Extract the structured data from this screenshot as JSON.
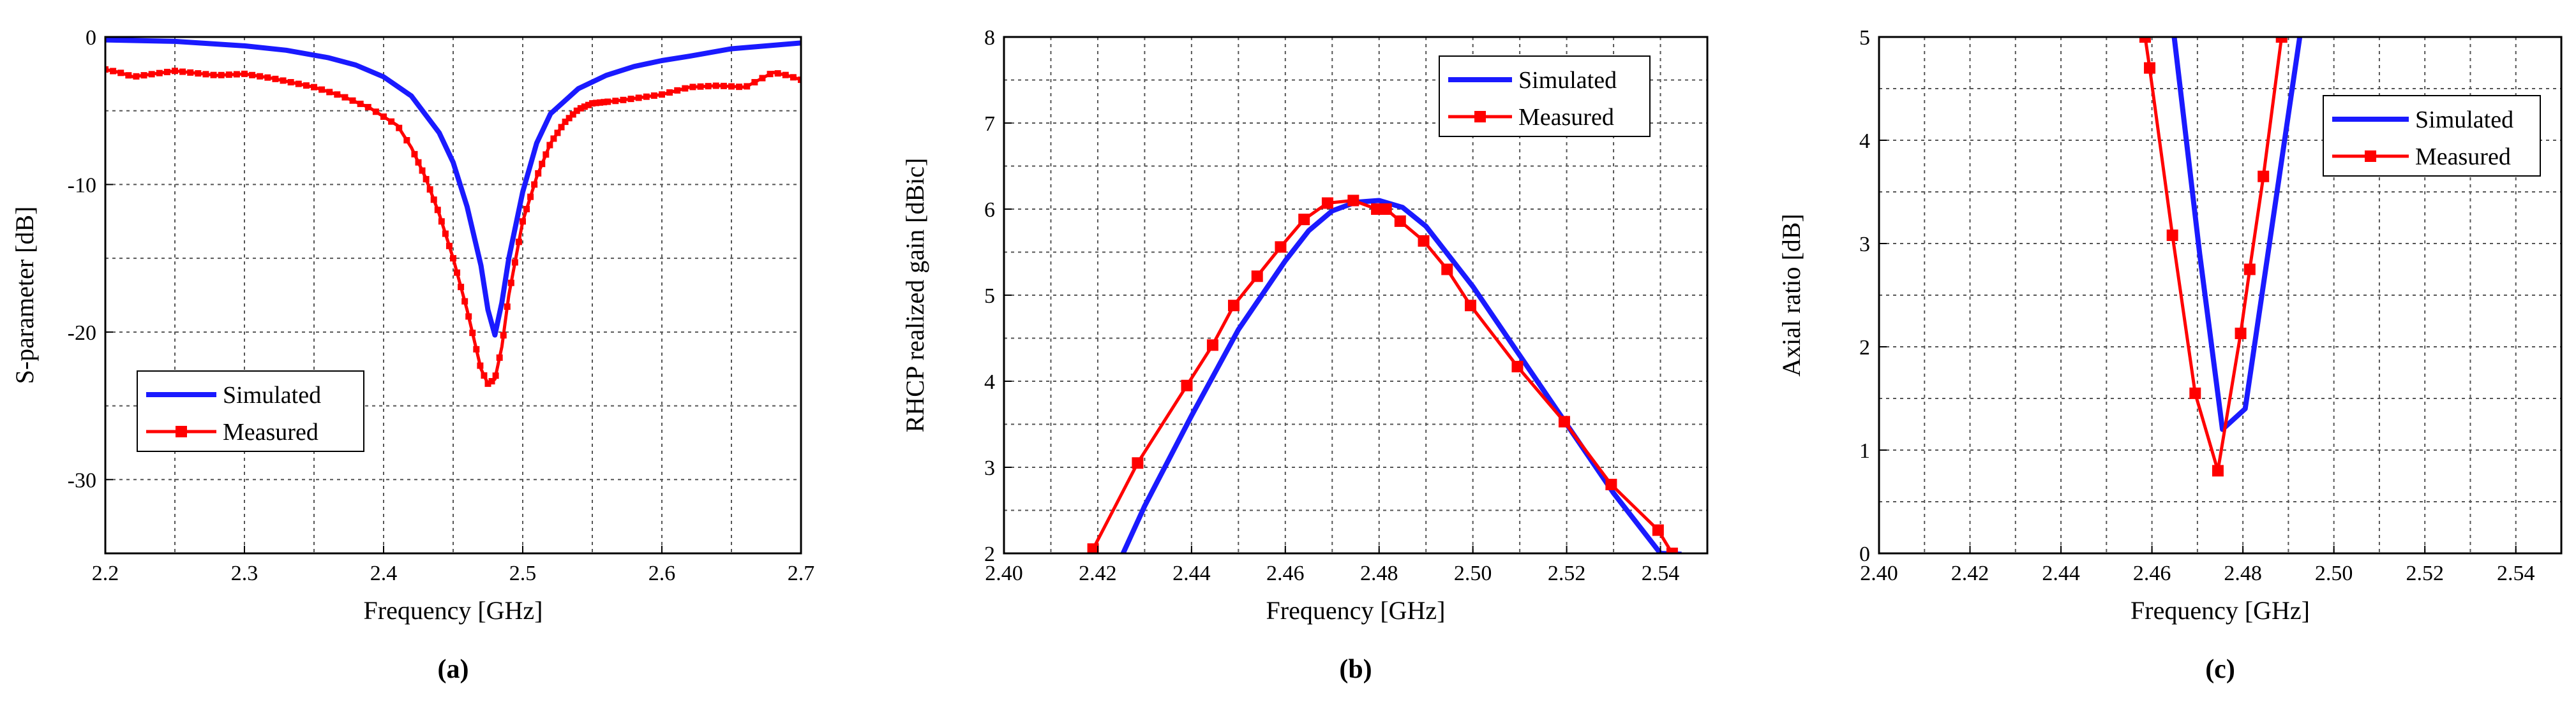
{
  "colors": {
    "simulated": "#1a1aff",
    "measured": "#ff0000",
    "grid": "#555555",
    "axis": "#000000"
  },
  "chart_data": [
    {
      "type": "line",
      "panel_label": "(a)",
      "xlabel": "Frequency [GHz]",
      "ylabel": "S-parameter [dB]",
      "xlim": [
        2.2,
        2.7
      ],
      "ylim": [
        -35,
        0
      ],
      "xticks": [
        2.2,
        2.3,
        2.4,
        2.5,
        2.6,
        2.7
      ],
      "xtick_labels": [
        "2.2",
        "2.3",
        "2.4",
        "2.5",
        "2.6",
        "2.7"
      ],
      "xgrid": [
        2.25,
        2.35,
        2.45,
        2.55,
        2.65
      ],
      "yticks": [
        0,
        -10,
        -20,
        -30
      ],
      "ytick_labels": [
        "0",
        "-10",
        "-20",
        "-30"
      ],
      "ygrid": [
        -5,
        -15,
        -25
      ],
      "legend_position": "lower-left",
      "series": [
        {
          "name": "Simulated",
          "color_key": "simulated",
          "marker": "none",
          "x": [
            2.2,
            2.25,
            2.3,
            2.33,
            2.36,
            2.38,
            2.4,
            2.42,
            2.44,
            2.45,
            2.46,
            2.47,
            2.475,
            2.48,
            2.485,
            2.49,
            2.5,
            2.51,
            2.52,
            2.54,
            2.56,
            2.58,
            2.6,
            2.62,
            2.65,
            2.7
          ],
          "y": [
            -0.2,
            -0.3,
            -0.6,
            -0.9,
            -1.4,
            -1.9,
            -2.7,
            -4.0,
            -6.5,
            -8.5,
            -11.5,
            -15.5,
            -18.5,
            -20.2,
            -18.0,
            -15.0,
            -10.5,
            -7.2,
            -5.2,
            -3.5,
            -2.6,
            -2.0,
            -1.6,
            -1.3,
            -0.8,
            -0.4
          ]
        },
        {
          "name": "Measured",
          "color_key": "measured",
          "marker": "square-dense",
          "x": [
            2.2,
            2.21,
            2.22,
            2.25,
            2.28,
            2.3,
            2.32,
            2.35,
            2.37,
            2.39,
            2.41,
            2.42,
            2.43,
            2.44,
            2.45,
            2.46,
            2.465,
            2.47,
            2.475,
            2.48,
            2.485,
            2.49,
            2.5,
            2.51,
            2.52,
            2.53,
            2.54,
            2.55,
            2.57,
            2.6,
            2.62,
            2.64,
            2.66,
            2.67,
            2.68,
            2.69,
            2.7
          ],
          "y": [
            -2.2,
            -2.4,
            -2.7,
            -2.3,
            -2.6,
            -2.5,
            -2.8,
            -3.4,
            -4.0,
            -4.8,
            -6.0,
            -7.5,
            -9.5,
            -12.0,
            -15.0,
            -18.5,
            -20.5,
            -22.5,
            -23.5,
            -23.2,
            -21.0,
            -17.5,
            -12.5,
            -9.5,
            -7.2,
            -5.8,
            -4.9,
            -4.5,
            -4.3,
            -3.9,
            -3.4,
            -3.3,
            -3.4,
            -2.9,
            -2.4,
            -2.6,
            -2.9
          ]
        }
      ]
    },
    {
      "type": "line",
      "panel_label": "(b)",
      "xlabel": "Frequency [GHz]",
      "ylabel": "RHCP realized gain [dBic]",
      "xlim": [
        2.4,
        2.55
      ],
      "ylim": [
        2,
        8
      ],
      "xticks": [
        2.4,
        2.42,
        2.44,
        2.46,
        2.48,
        2.5,
        2.52,
        2.54
      ],
      "xtick_labels": [
        "2.40",
        "2.42",
        "2.44",
        "2.46",
        "2.48",
        "2.50",
        "2.52",
        "2.54"
      ],
      "xgrid": [
        2.41,
        2.43,
        2.45,
        2.47,
        2.49,
        2.51,
        2.53,
        2.55
      ],
      "yticks": [
        2,
        3,
        4,
        5,
        6,
        7,
        8
      ],
      "ytick_labels": [
        "2",
        "3",
        "4",
        "5",
        "6",
        "7",
        "8"
      ],
      "ygrid": [
        2.5,
        3.5,
        4.5,
        5.5,
        6.5,
        7.5
      ],
      "legend_position": "top-right",
      "series": [
        {
          "name": "Simulated",
          "color_key": "simulated",
          "marker": "none",
          "x": [
            2.4254,
            2.43,
            2.44,
            2.45,
            2.46,
            2.465,
            2.47,
            2.475,
            2.48,
            2.485,
            2.49,
            2.5,
            2.51,
            2.52,
            2.53,
            2.54,
            2.5445
          ],
          "y": [
            2.0,
            2.55,
            3.6,
            4.6,
            5.4,
            5.75,
            5.98,
            6.08,
            6.1,
            6.02,
            5.8,
            5.1,
            4.3,
            3.5,
            2.7,
            2.0,
            1.99
          ]
        },
        {
          "name": "Measured",
          "color_key": "measured",
          "marker": "square",
          "x": [
            2.419,
            2.4285,
            2.439,
            2.4445,
            2.449,
            2.454,
            2.459,
            2.464,
            2.469,
            2.4745,
            2.4795,
            2.4815,
            2.4845,
            2.4895,
            2.4945,
            2.4995,
            2.5095,
            2.5195,
            2.5295,
            2.5395,
            2.5425
          ],
          "y": [
            2.05,
            3.05,
            3.95,
            4.42,
            4.88,
            5.22,
            5.56,
            5.88,
            6.07,
            6.1,
            6.0,
            6.0,
            5.86,
            5.63,
            5.3,
            4.88,
            4.17,
            3.53,
            2.8,
            2.27,
            2.0
          ]
        }
      ]
    },
    {
      "type": "line",
      "panel_label": "(c)",
      "xlabel": "Frequency [GHz]",
      "ylabel": "Axial ratio [dB]",
      "xlim": [
        2.4,
        2.55
      ],
      "ylim": [
        0,
        5
      ],
      "xticks": [
        2.4,
        2.42,
        2.44,
        2.46,
        2.48,
        2.5,
        2.52,
        2.54
      ],
      "xtick_labels": [
        "2.40",
        "2.42",
        "2.44",
        "2.46",
        "2.48",
        "2.50",
        "2.52",
        "2.54"
      ],
      "xgrid": [
        2.41,
        2.43,
        2.45,
        2.47,
        2.49,
        2.51,
        2.53,
        2.55
      ],
      "yticks": [
        0,
        1,
        2,
        3,
        4,
        5
      ],
      "ytick_labels": [
        "0",
        "1",
        "2",
        "3",
        "4",
        "5"
      ],
      "ygrid": [
        0.5,
        1.5,
        2.5,
        3.5,
        4.5
      ],
      "legend_position": "top-right",
      "series": [
        {
          "name": "Simulated",
          "color_key": "simulated",
          "marker": "none",
          "x": [
            2.4649,
            2.4705,
            2.4755,
            2.4805,
            2.4925
          ],
          "y": [
            5.0,
            2.9,
            1.2,
            1.4,
            5.0
          ]
        },
        {
          "name": "Measured",
          "color_key": "measured",
          "marker": "square",
          "x": [
            2.4585,
            2.4595,
            2.4645,
            2.4695,
            2.4745,
            2.4795,
            2.4815,
            2.4845,
            2.4885
          ],
          "y": [
            5.0,
            4.7,
            3.08,
            1.55,
            0.8,
            2.13,
            2.75,
            3.65,
            5.0
          ]
        }
      ]
    }
  ]
}
